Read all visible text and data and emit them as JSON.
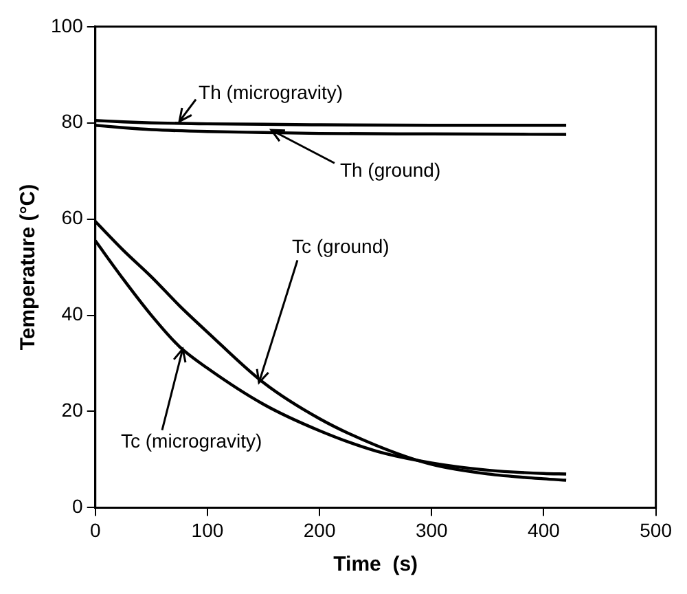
{
  "chart_data": {
    "type": "line",
    "xlabel": "Time  (s)",
    "ylabel": "Temperature (°C)",
    "xlim": [
      0,
      500
    ],
    "xticks": [
      0,
      100,
      200,
      300,
      400,
      500
    ],
    "ylim": [
      0,
      100
    ],
    "yticks": [
      0,
      20,
      40,
      60,
      80,
      100
    ],
    "grid": false,
    "legend": false,
    "marker": "none",
    "line_style": "solid",
    "series": [
      {
        "color": "#000000",
        "x": [
          0,
          25,
          50,
          100,
          150,
          200,
          300,
          420
        ],
        "values": [
          80.5,
          80.2,
          80,
          79.8,
          79.7,
          79.6,
          79.5,
          79.5
        ]
      },
      {
        "color": "#000000",
        "x": [
          0,
          25,
          50,
          100,
          150,
          200,
          300,
          420
        ],
        "values": [
          79.5,
          79,
          78.6,
          78.2,
          78,
          77.8,
          77.7,
          77.6
        ]
      },
      {
        "color": "#000000",
        "x": [
          0,
          25,
          50,
          75,
          100,
          150,
          200,
          250,
          300,
          350,
          400,
          420
        ],
        "values": [
          59.5,
          53.5,
          48,
          42,
          36.5,
          26,
          18.5,
          13,
          9,
          7,
          6,
          5.7
        ]
      },
      {
        "color": "#000000",
        "x": [
          0,
          25,
          50,
          75,
          100,
          150,
          200,
          250,
          300,
          350,
          400,
          420
        ],
        "values": [
          55.5,
          47.5,
          40,
          33.5,
          29,
          21.5,
          16,
          11.8,
          9.3,
          7.8,
          7.1,
          7
        ]
      }
    ],
    "annotations": [
      {
        "text": "Th (microgravity)",
        "x": 75,
        "y": 80.3
      },
      {
        "text": "Th (ground)",
        "x": 157,
        "y": 78.5
      },
      {
        "text": "Tc (ground)",
        "x": 146,
        "y": 26
      },
      {
        "text": "Tc (microgravity)",
        "x": 78,
        "y": 33
      }
    ]
  }
}
